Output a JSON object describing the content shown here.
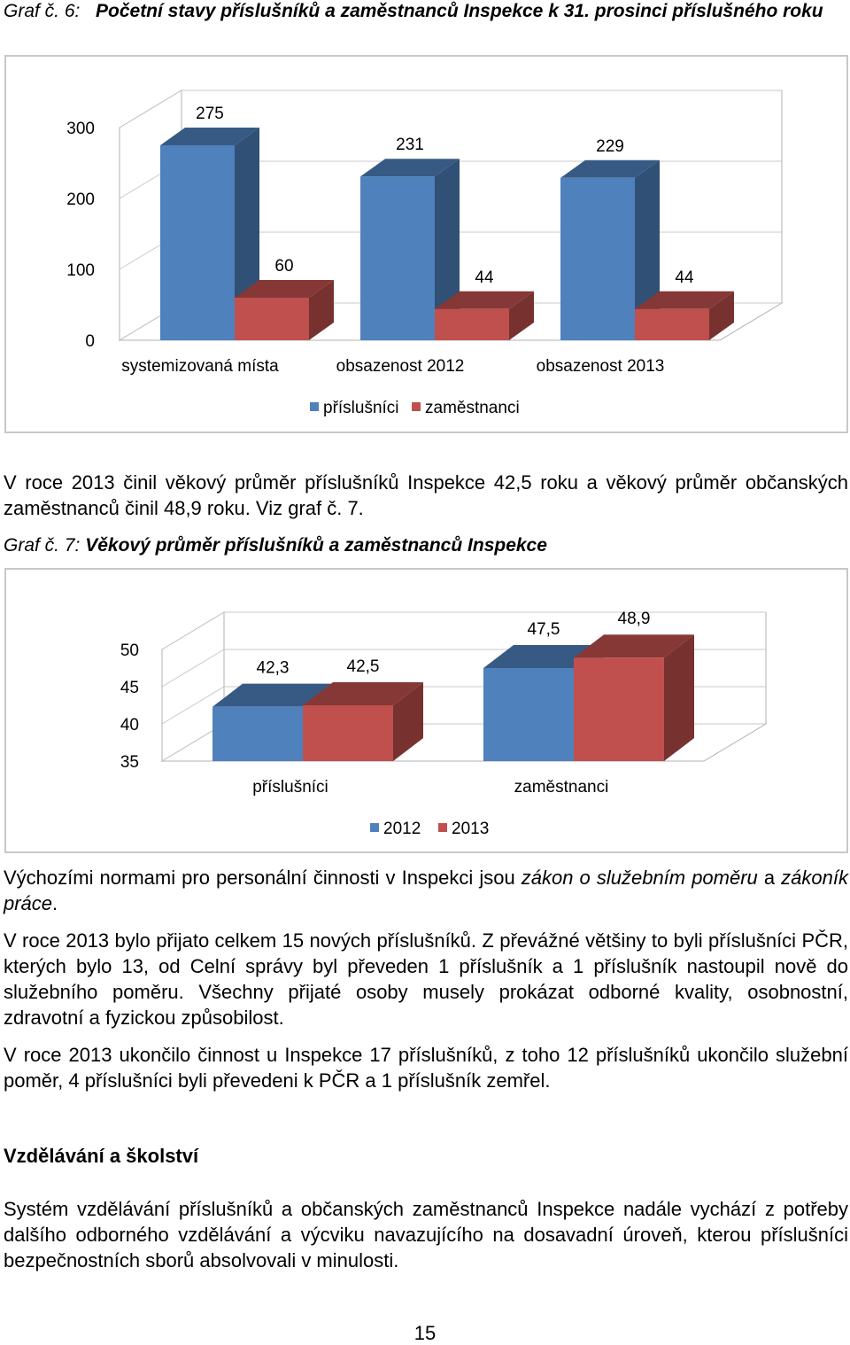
{
  "charts_text": {
    "graf6_prefix": "Graf č. 6:",
    "graf6_title": "Početní stavy příslušníků a zaměstnanců Inspekce k 31. prosinci příslušného roku",
    "graf7_prefix": "Graf č. 7:",
    "graf7_title": "Věkový průměr příslušníků a zaměstnanců Inspekce"
  },
  "chart_data": [
    {
      "type": "bar",
      "title": "Početní stavy příslušníků a zaměstnanců Inspekce k 31. prosinci příslušného roku",
      "categories": [
        "systemizovaná místa",
        "obsazenost 2012",
        "obsazenost 2013"
      ],
      "series": [
        {
          "name": "příslušníci",
          "values": [
            275,
            231,
            229
          ],
          "labels": [
            "275",
            "231",
            "229"
          ],
          "color": "#4f81bd"
        },
        {
          "name": "zaměstnanci",
          "values": [
            60,
            44,
            44
          ],
          "labels": [
            "60",
            "44",
            "44"
          ],
          "color": "#c0504d"
        }
      ],
      "ylim": [
        0,
        300
      ],
      "yticks": [
        "0",
        "100",
        "200",
        "300"
      ],
      "legend_position": "bottom",
      "style": "3d-column"
    },
    {
      "type": "bar",
      "title": "Věkový průměr příslušníků a zaměstnanců Inspekce",
      "categories": [
        "příslušníci",
        "zaměstnanci"
      ],
      "series": [
        {
          "name": "2012",
          "values": [
            42.3,
            47.5
          ],
          "labels": [
            "42,3",
            "47,5"
          ],
          "color": "#4f81bd"
        },
        {
          "name": "2013",
          "values": [
            42.5,
            48.9
          ],
          "labels": [
            "42,5",
            "48,9"
          ],
          "color": "#c0504d"
        }
      ],
      "ylim": [
        35,
        50
      ],
      "yticks": [
        "35",
        "40",
        "45",
        "50"
      ],
      "legend_position": "bottom",
      "style": "3d-column"
    }
  ],
  "text": {
    "p1": "V roce 2013 činil věkový průměr příslušníků Inspekce 42,5 roku a věkový průměr občanských zaměstnanců činil 48,9 roku. Viz graf č. 7.",
    "p2_a": "Výchozími normami pro personální činnosti v Inspekci jsou ",
    "p2_b": "zákon o služebním poměru",
    "p2_c": " a ",
    "p2_d": "zákoník práce",
    "p2_e": ".",
    "p3": "V roce 2013 bylo přijato celkem 15 nových příslušníků. Z převážné většiny to byli příslušníci PČR, kterých bylo 13, od Celní správy byl převeden 1 příslušník a 1 příslušník nastoupil nově do služebního poměru. Všechny přijaté osoby musely prokázat odborné kvality, osobnostní, zdravotní a fyzickou způsobilost.",
    "p4": "V roce 2013 ukončilo činnost u Inspekce 17 příslušníků, z toho 12 příslušníků ukončilo služební poměr, 4 příslušníci byli převedeni k PČR a 1 příslušník zemřel.",
    "heading": "Vzdělávání a školství",
    "p5": "Systém vzdělávání příslušníků a občanských zaměstnanců Inspekce nadále vychází z potřeby dalšího odborného vzdělávání a výcviku navazujícího na dosavadní úroveň, kterou příslušníci bezpečnostních sborů absolvovali v minulosti.",
    "page_number": "15"
  }
}
